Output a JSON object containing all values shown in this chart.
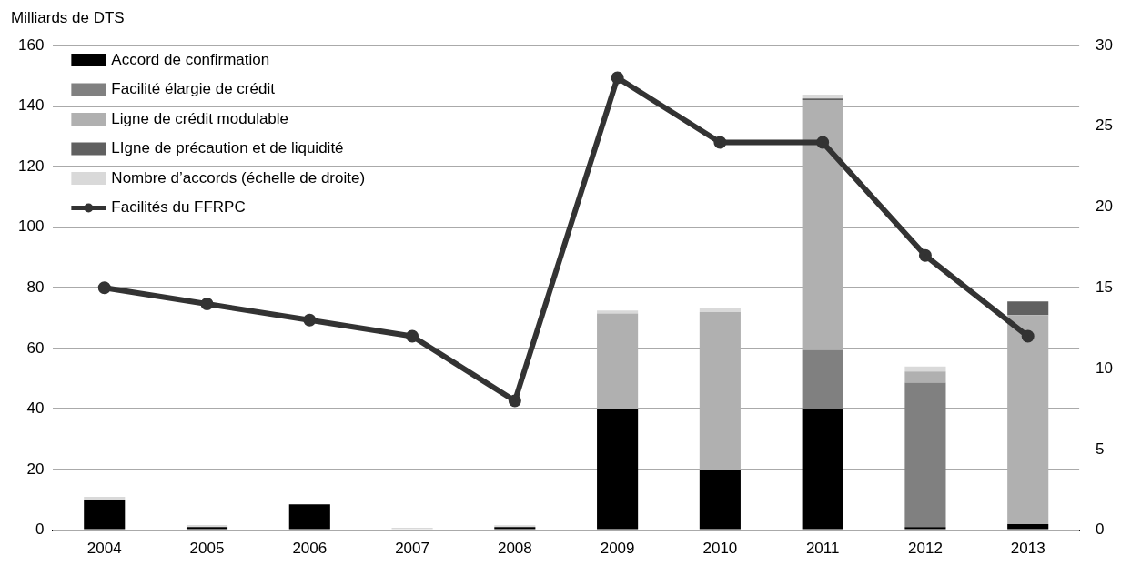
{
  "chart_data": {
    "type": "bar",
    "stacked": true,
    "ylabel": "Milliards de DTS",
    "categories": [
      "2004",
      "2005",
      "2006",
      "2007",
      "2008",
      "2009",
      "2010",
      "2011",
      "2012",
      "2013"
    ],
    "series": [
      {
        "name": "Accord de confirmation",
        "color": "#000000",
        "values": [
          10,
          1,
          8.5,
          0,
          1,
          40,
          20,
          40,
          1,
          2
        ]
      },
      {
        "name": "Facilité élargie de crédit",
        "color": "#808080",
        "values": [
          0,
          0,
          0,
          0,
          0,
          0,
          0,
          19.5,
          47.7,
          0
        ]
      },
      {
        "name": "Ligne de crédit modulable",
        "color": "#b0b0b0",
        "values": [
          0,
          0,
          0,
          0,
          0,
          31.5,
          52,
          82.5,
          3.7,
          69
        ]
      },
      {
        "name": "LIgne de précaution et de liquidité",
        "color": "#606060",
        "values": [
          0,
          0,
          0,
          0,
          0,
          0,
          0,
          0.5,
          0,
          4.5
        ]
      },
      {
        "name": "Nombre d’accords (échelle de droite)",
        "color": "#d9d9d9",
        "values": [
          1,
          0.7,
          0,
          0.8,
          0.6,
          1,
          1.3,
          1.3,
          1.6,
          0
        ]
      },
      {
        "name": "Facilités du FFRPC",
        "type": "line",
        "axis": "y2",
        "color": "#333333",
        "values": [
          15,
          14,
          13,
          12,
          8,
          28,
          24,
          24,
          17,
          12
        ]
      }
    ],
    "ylim": [
      0,
      160
    ],
    "yticks": [
      0,
      20,
      40,
      60,
      80,
      100,
      120,
      140,
      160
    ],
    "y2lim": [
      0,
      30
    ],
    "y2ticks": [
      0,
      5,
      10,
      15,
      20,
      25,
      30
    ],
    "grid": "y",
    "legend": "top left",
    "marker": "circle",
    "line_style": "solid"
  }
}
